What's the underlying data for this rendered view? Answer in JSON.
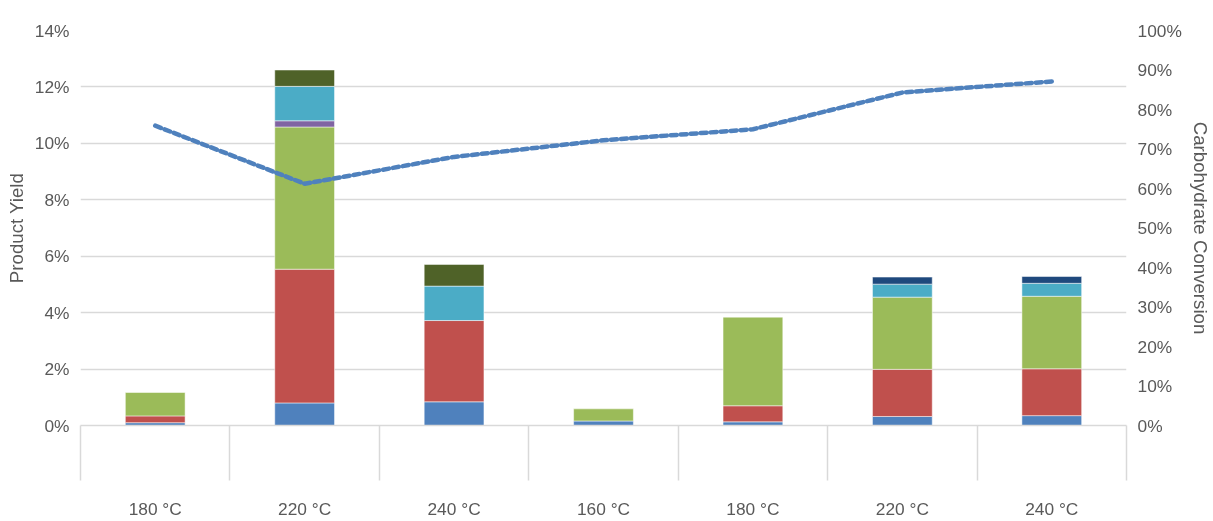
{
  "chart_data": {
    "type": "bar",
    "stacked": true,
    "grid": "y",
    "categories": [
      "180 °C",
      "220 °C",
      "240 °C",
      "160 °C",
      "180 °C",
      "220 °C",
      "240 °C"
    ],
    "ylabel": "Product Yield",
    "y2label": "Carbohydrate Conversion",
    "ylim": [
      0,
      14
    ],
    "yticks": [
      {
        "value": 0,
        "label": "0%"
      },
      {
        "value": 2,
        "label": "2%"
      },
      {
        "value": 4,
        "label": "4%"
      },
      {
        "value": 6,
        "label": "6%"
      },
      {
        "value": 8,
        "label": "8%"
      },
      {
        "value": 10,
        "label": "10%"
      },
      {
        "value": 12,
        "label": "12%"
      },
      {
        "value": 14,
        "label": "14%"
      }
    ],
    "y2lim": [
      0,
      100
    ],
    "y2ticks": [
      {
        "value": 0,
        "label": "0%"
      },
      {
        "value": 10,
        "label": "10%"
      },
      {
        "value": 20,
        "label": "20%"
      },
      {
        "value": 30,
        "label": "30%"
      },
      {
        "value": 40,
        "label": "40%"
      },
      {
        "value": 50,
        "label": "50%"
      },
      {
        "value": 60,
        "label": "60%"
      },
      {
        "value": 70,
        "label": "70%"
      },
      {
        "value": 80,
        "label": "80%"
      },
      {
        "value": 90,
        "label": "90%"
      },
      {
        "value": 100,
        "label": "100%"
      }
    ],
    "series": [
      {
        "color": "#4f81bd",
        "values": [
          0.1,
          0.8,
          0.84,
          0.16,
          0.13,
          0.32,
          0.35
        ]
      },
      {
        "color": "#c0504d",
        "values": [
          0.24,
          4.74,
          2.88,
          null,
          0.57,
          1.67,
          1.66
        ]
      },
      {
        "color": "#9bbb59",
        "values": [
          0.83,
          5.04,
          null,
          0.43,
          3.14,
          2.56,
          2.57
        ]
      },
      {
        "color": "#8064a2",
        "values": [
          null,
          0.22,
          null,
          null,
          null,
          null,
          null
        ]
      },
      {
        "color": "#4bacc6",
        "values": [
          null,
          1.22,
          1.22,
          null,
          null,
          0.46,
          0.46
        ]
      },
      {
        "color": "#4f6228",
        "values": [
          null,
          0.58,
          0.77,
          null,
          null,
          null,
          null
        ]
      },
      {
        "color": "#1f497d",
        "values": [
          null,
          null,
          null,
          null,
          null,
          0.25,
          0.24
        ]
      },
      {
        "type": "line",
        "axis": "y2",
        "line_style": "dashed",
        "color": "#4f81bd",
        "values": [
          75.9,
          61.2,
          68.0,
          72.2,
          75.0,
          84.3,
          87.1
        ]
      }
    ]
  }
}
